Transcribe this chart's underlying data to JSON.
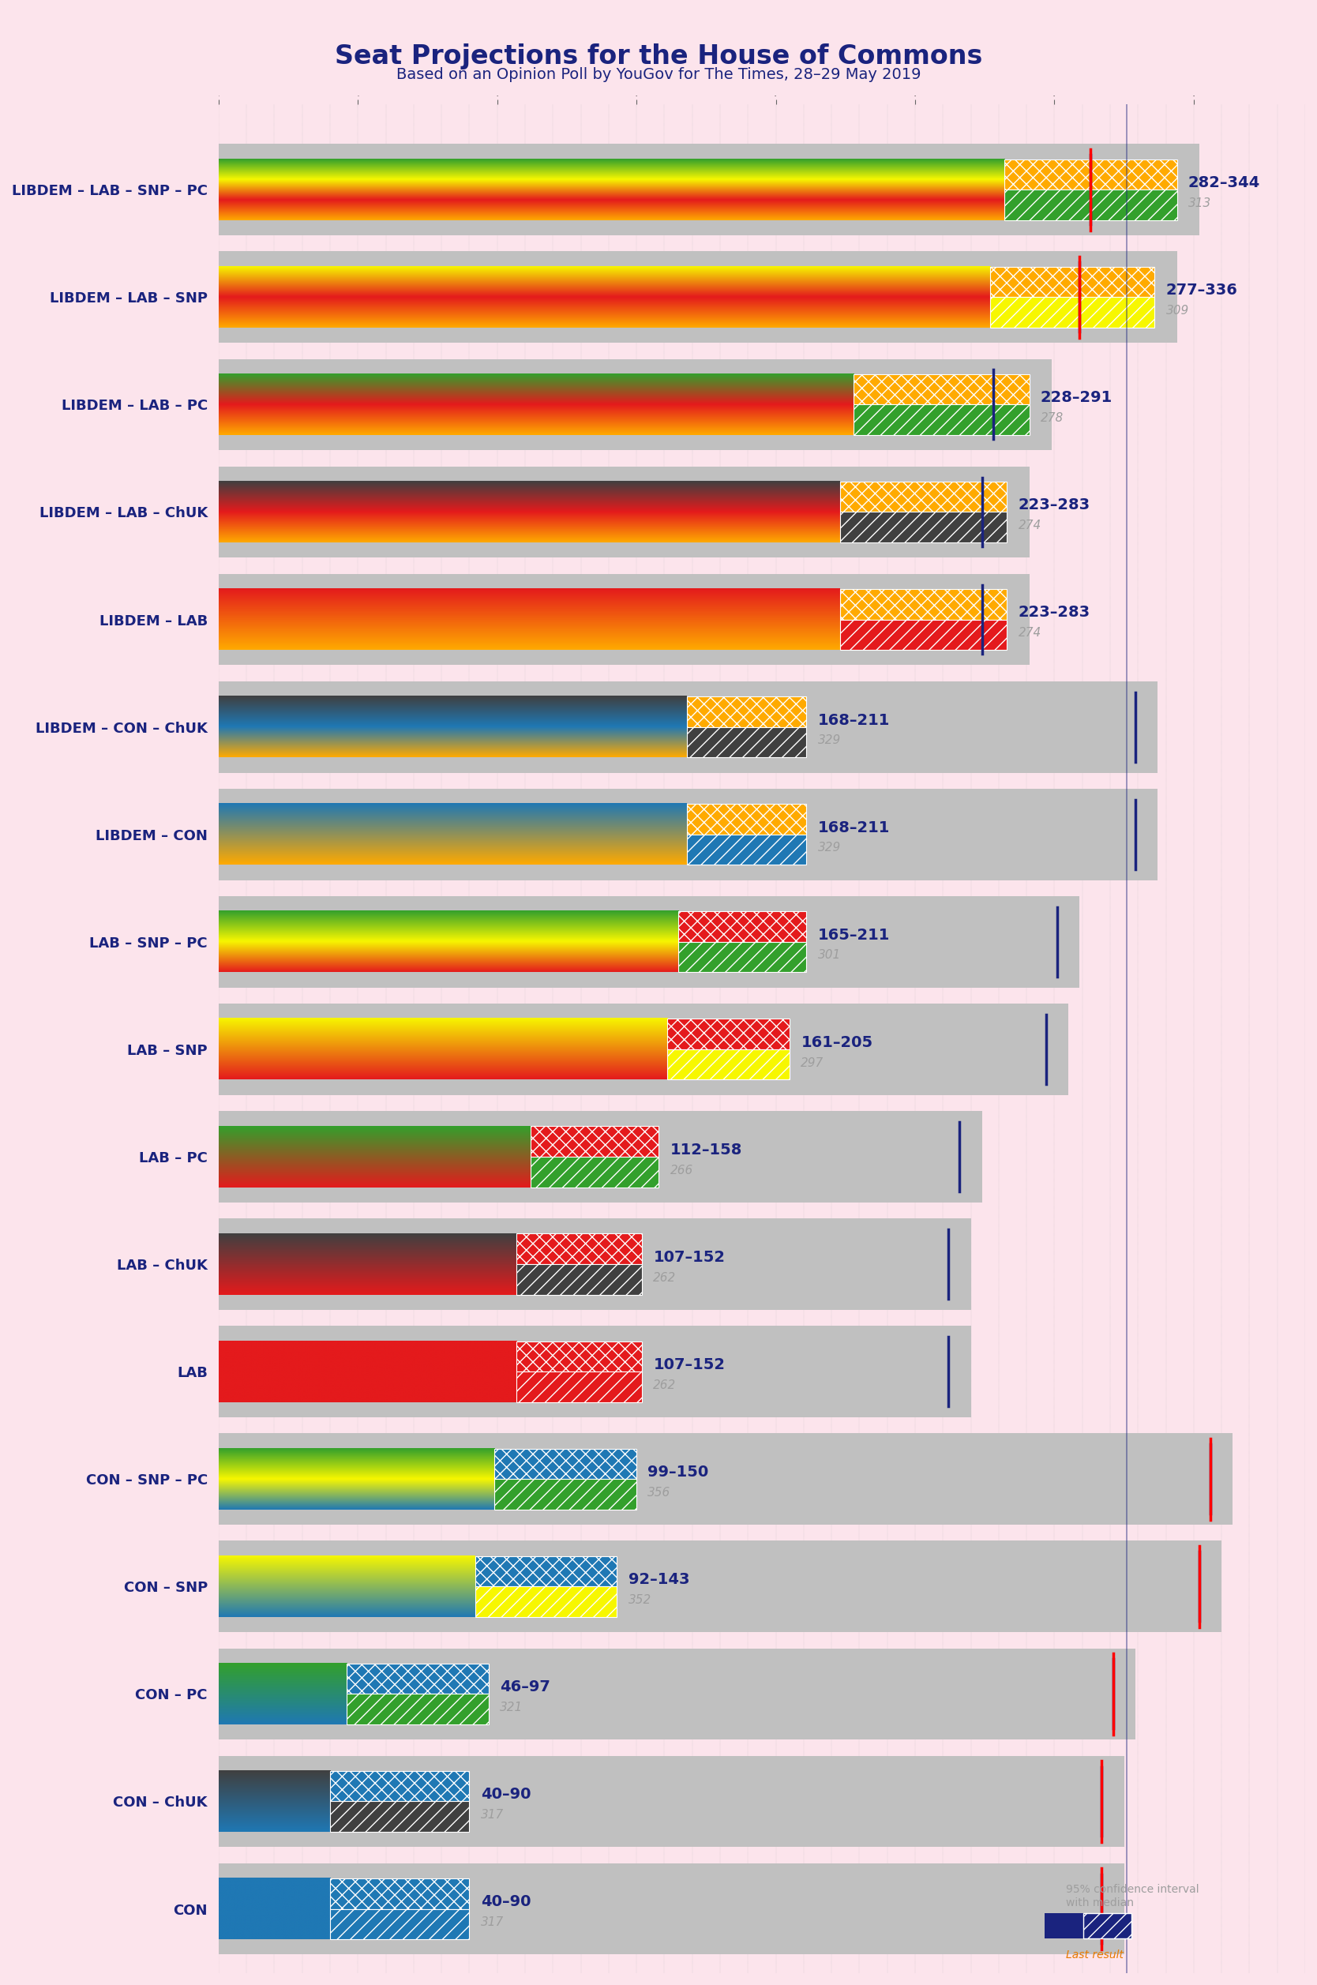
{
  "title": "Seat Projections for the House of Commons",
  "subtitle": "Based on an Opinion Poll by YouGov for The Times, 28–29 May 2019",
  "background_color": "#fce4ec",
  "title_color": "#1a237e",
  "coalitions": [
    "LIBDEM – LAB – SNP – PC",
    "LIBDEM – LAB – SNP",
    "LIBDEM – LAB – PC",
    "LIBDEM – LAB – ChUK",
    "LIBDEM – LAB",
    "LIBDEM – CON – ChUK",
    "LIBDEM – CON",
    "LAB – SNP – PC",
    "LAB – SNP",
    "LAB – PC",
    "LAB – ChUK",
    "LAB",
    "CON – SNP – PC",
    "CON – SNP",
    "CON – PC",
    "CON – ChUK",
    "CON"
  ],
  "ci_low": [
    282,
    277,
    228,
    223,
    223,
    168,
    168,
    165,
    161,
    112,
    107,
    107,
    99,
    92,
    46,
    40,
    40
  ],
  "ci_high": [
    344,
    336,
    291,
    283,
    283,
    211,
    211,
    211,
    205,
    158,
    152,
    152,
    150,
    143,
    97,
    90,
    90
  ],
  "median": [
    313,
    309,
    278,
    274,
    274,
    329,
    329,
    301,
    297,
    266,
    262,
    262,
    356,
    352,
    321,
    317,
    317
  ],
  "last_results": {
    "LIBDEM – LAB – SNP – PC": 313,
    "LIBDEM – LAB – SNP": 309,
    "CON – SNP – PC": 356,
    "CON – SNP": 352,
    "CON – PC": 321,
    "CON – ChUK": 317,
    "CON": 317
  },
  "party_colors": {
    "LIBDEM": "#ffaa00",
    "LAB": "#e41a1c",
    "CON": "#1f78b4",
    "SNP": "#f7f700",
    "PC": "#33a02c",
    "ChUK": "#404040"
  },
  "coalition_parties": {
    "LIBDEM – LAB – SNP – PC": [
      "LIBDEM",
      "LAB",
      "SNP",
      "PC"
    ],
    "LIBDEM – LAB – SNP": [
      "LIBDEM",
      "LAB",
      "SNP"
    ],
    "LIBDEM – LAB – PC": [
      "LIBDEM",
      "LAB",
      "PC"
    ],
    "LIBDEM – LAB – ChUK": [
      "LIBDEM",
      "LAB",
      "ChUK"
    ],
    "LIBDEM – LAB": [
      "LIBDEM",
      "LAB"
    ],
    "LIBDEM – CON – ChUK": [
      "LIBDEM",
      "CON",
      "ChUK"
    ],
    "LIBDEM – CON": [
      "LIBDEM",
      "CON"
    ],
    "LAB – SNP – PC": [
      "LAB",
      "SNP",
      "PC"
    ],
    "LAB – SNP": [
      "LAB",
      "SNP"
    ],
    "LAB – PC": [
      "LAB",
      "PC"
    ],
    "LAB – ChUK": [
      "LAB",
      "ChUK"
    ],
    "LAB": [
      "LAB"
    ],
    "CON – SNP – PC": [
      "CON",
      "SNP",
      "PC"
    ],
    "CON – SNP": [
      "CON",
      "SNP"
    ],
    "CON – PC": [
      "CON",
      "PC"
    ],
    "CON – ChUK": [
      "CON",
      "ChUK"
    ],
    "CON": [
      "CON"
    ]
  },
  "gray_bar_color": "#c0c0c0",
  "median_line_color": "#1a237e",
  "last_result_line_color": "#ff0000",
  "range_label_color": "#1a237e",
  "median_label_color": "#9e9e9e",
  "xmax": 390,
  "majority_line": 326
}
